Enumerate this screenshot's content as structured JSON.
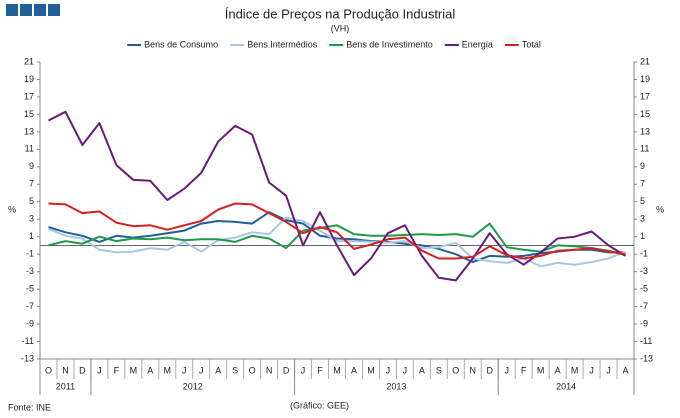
{
  "chart_data": {
    "type": "line",
    "title": "Índice de Preços na Produção Industrial",
    "subtitle": "(VH)",
    "y_label": "%",
    "source": "Fonte: INE",
    "credit": "(Gráfico: GEE)",
    "categories": [
      "O",
      "N",
      "D",
      "J",
      "F",
      "M",
      "A",
      "M",
      "J",
      "J",
      "A",
      "S",
      "O",
      "N",
      "D",
      "J",
      "F",
      "M",
      "A",
      "M",
      "J",
      "J",
      "A",
      "S",
      "O",
      "N",
      "D",
      "J",
      "F",
      "M",
      "A",
      "M",
      "J",
      "J",
      "A"
    ],
    "years": [
      "2011",
      "2012",
      "2013",
      "2014"
    ],
    "ylim": [
      -13,
      21
    ],
    "yticks": [
      -13,
      -11,
      -9,
      -7,
      -5,
      -3,
      -1,
      1,
      3,
      5,
      7,
      9,
      11,
      13,
      15,
      17,
      19,
      21
    ],
    "series": [
      {
        "name": "Bens de Consumo",
        "color": "#1f5f9a",
        "values": [
          2.1,
          1.5,
          1.1,
          0.4,
          1.1,
          0.9,
          1.1,
          1.4,
          1.7,
          2.5,
          2.8,
          2.7,
          2.5,
          3.8,
          2.9,
          2.5,
          1.1,
          0.8,
          0.7,
          0.5,
          0.4,
          0.2,
          0,
          -0.4,
          -1,
          -1.9,
          -1.2,
          -1.3,
          -1.2,
          -0.9,
          -0.7,
          -0.5,
          -0.5,
          -0.8,
          -0.8
        ]
      },
      {
        "name": "Bens Intermédios",
        "color": "#a6c8e6",
        "values": [
          1.9,
          1.1,
          0.8,
          -0.5,
          -0.8,
          -0.7,
          -0.3,
          -0.5,
          0.4,
          -0.7,
          0.6,
          0.9,
          1.5,
          1.3,
          3.2,
          2.8,
          1.7,
          0.5,
          0.5,
          0.4,
          0.3,
          0.5,
          -0.3,
          -0.2,
          0.3,
          -1.5,
          -1.8,
          -2,
          -1.5,
          -2.4,
          -2,
          -2.2,
          -1.9,
          -1.5,
          -0.7
        ]
      },
      {
        "name": "Bens de Investimento",
        "color": "#1f9a4a",
        "values": [
          0,
          0.5,
          0.2,
          1.0,
          0.5,
          0.8,
          0.7,
          0.9,
          0.6,
          0.7,
          0.7,
          0.4,
          1.1,
          0.8,
          -0.3,
          1.7,
          2.0,
          2.3,
          1.3,
          1.1,
          1.1,
          1.2,
          1.3,
          1.2,
          1.3,
          1.0,
          2.5,
          -0.2,
          -0.5,
          -0.7,
          0,
          -0.1,
          -0.3,
          -0.6,
          -1.1
        ]
      },
      {
        "name": "Energia",
        "color": "#6a1a7a",
        "values": [
          14.3,
          15.3,
          11.5,
          14,
          9.2,
          7.5,
          7.4,
          5.2,
          6.5,
          8.3,
          11.9,
          13.7,
          12.7,
          7.2,
          5.7,
          0,
          3.8,
          0,
          -3.4,
          -1.5,
          1.4,
          2.3,
          -1.2,
          -3.7,
          -4,
          -1.5,
          1.4,
          -1,
          -2.2,
          -0.8,
          0.8,
          1,
          1.6,
          0,
          -1.2
        ]
      },
      {
        "name": "Total",
        "color": "#d42020",
        "values": [
          4.8,
          4.7,
          3.7,
          3.9,
          2.6,
          2.2,
          2.3,
          1.8,
          2.3,
          2.8,
          4.1,
          4.8,
          4.7,
          3.7,
          2.7,
          1.4,
          2.1,
          1.5,
          -0.4,
          0.1,
          0.7,
          0.9,
          -0.6,
          -1.5,
          -1.5,
          -1.3,
          -0.1,
          -1.1,
          -1.5,
          -1.2,
          -0.6,
          -0.5,
          -0.3,
          -0.7,
          -1.0
        ]
      }
    ]
  }
}
